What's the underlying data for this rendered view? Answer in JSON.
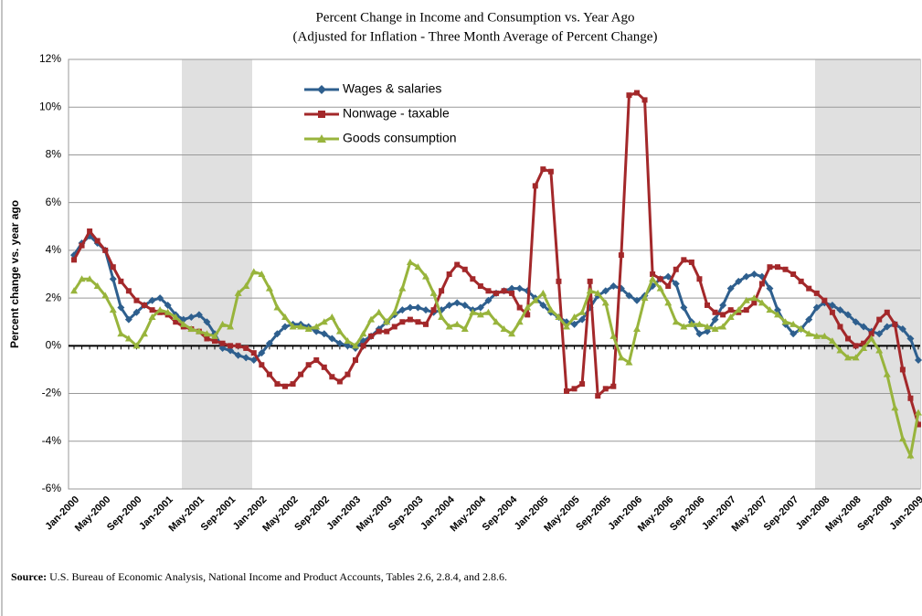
{
  "chart_data": {
    "type": "line",
    "title": "Percent Change in Income and Consumption vs. Year Ago",
    "subtitle": "(Adjusted for Inflation - Three Month Average of Percent Change)",
    "y_label": "Percent change vs. year ago",
    "source_label": "Source:",
    "source_text": "U.S. Bureau of Economic Analysis, National Income and Product Accounts, Tables 2.6, 2.8.4, and 2.8.6.",
    "categories": [
      "Jan-2000",
      null,
      null,
      null,
      "May-2000",
      null,
      null,
      null,
      "Sep-2000",
      null,
      null,
      null,
      "Jan-2001",
      null,
      null,
      null,
      "May-2001",
      null,
      null,
      null,
      "Sep-2001",
      null,
      null,
      null,
      "Jan-2002",
      null,
      null,
      null,
      "May-2002",
      null,
      null,
      null,
      "Sep-2002",
      null,
      null,
      null,
      "Jan-2003",
      null,
      null,
      null,
      "May-2003",
      null,
      null,
      null,
      "Sep-2003",
      null,
      null,
      null,
      "Jan-2004",
      null,
      null,
      null,
      "May-2004",
      null,
      null,
      null,
      "Sep-2004",
      null,
      null,
      null,
      "Jan-2005",
      null,
      null,
      null,
      "May-2005",
      null,
      null,
      null,
      "Sep-2005",
      null,
      null,
      null,
      "Jan-2006",
      null,
      null,
      null,
      "May-2006",
      null,
      null,
      null,
      "Sep-2006",
      null,
      null,
      null,
      "Jan-2007",
      null,
      null,
      null,
      "May-2007",
      null,
      null,
      null,
      "Sep-2007",
      null,
      null,
      null,
      "Jan-2008",
      null,
      null,
      null,
      "May-2008",
      null,
      null,
      null,
      "Sep-2008",
      null,
      null,
      null,
      "Jan-2009"
    ],
    "series": [
      {
        "name": "Wages & salaries",
        "color": "#2e5f8e",
        "marker": "diamond",
        "values": [
          3.8,
          4.3,
          4.6,
          4.3,
          4.0,
          2.8,
          1.6,
          1.1,
          1.4,
          1.7,
          1.9,
          2.0,
          1.7,
          1.3,
          1.1,
          1.2,
          1.3,
          1.0,
          0.5,
          -0.1,
          -0.2,
          -0.4,
          -0.5,
          -0.6,
          -0.3,
          0.1,
          0.5,
          0.8,
          0.9,
          0.9,
          0.8,
          0.6,
          0.5,
          0.3,
          0.1,
          0.0,
          -0.1,
          0.2,
          0.4,
          0.7,
          1.0,
          1.3,
          1.5,
          1.6,
          1.6,
          1.5,
          1.4,
          1.5,
          1.7,
          1.8,
          1.7,
          1.5,
          1.6,
          1.9,
          2.2,
          2.3,
          2.4,
          2.4,
          2.3,
          2.0,
          1.7,
          1.4,
          1.2,
          1.0,
          0.9,
          1.1,
          1.6,
          2.1,
          2.3,
          2.5,
          2.4,
          2.1,
          1.9,
          2.1,
          2.5,
          2.8,
          2.9,
          2.6,
          1.6,
          1.0,
          0.5,
          0.6,
          1.1,
          1.7,
          2.4,
          2.7,
          2.9,
          3.0,
          2.9,
          2.4,
          1.5,
          0.9,
          0.5,
          0.7,
          1.1,
          1.6,
          1.8,
          1.7,
          1.5,
          1.3,
          1.0,
          0.8,
          0.6,
          0.5,
          0.8,
          0.9,
          0.7,
          0.3,
          -0.6
        ]
      },
      {
        "name": "Nonwage - taxable",
        "color": "#a3282a",
        "marker": "square",
        "values": [
          3.6,
          4.2,
          4.8,
          4.4,
          4.0,
          3.3,
          2.7,
          2.3,
          1.9,
          1.7,
          1.5,
          1.4,
          1.3,
          1.0,
          0.8,
          0.7,
          0.6,
          0.3,
          0.2,
          0.1,
          0.0,
          0.0,
          -0.1,
          -0.3,
          -0.8,
          -1.2,
          -1.6,
          -1.7,
          -1.6,
          -1.2,
          -0.8,
          -0.6,
          -0.9,
          -1.3,
          -1.5,
          -1.2,
          -0.6,
          0.0,
          0.4,
          0.6,
          0.6,
          0.8,
          1.0,
          1.1,
          1.0,
          0.9,
          1.5,
          2.3,
          3.0,
          3.4,
          3.2,
          2.8,
          2.5,
          2.3,
          2.2,
          2.3,
          2.2,
          1.6,
          1.3,
          6.7,
          7.4,
          7.3,
          2.7,
          -1.9,
          -1.8,
          -1.6,
          2.7,
          -2.1,
          -1.8,
          -1.7,
          3.8,
          10.5,
          10.6,
          10.3,
          3.0,
          2.8,
          2.5,
          3.2,
          3.6,
          3.5,
          2.8,
          1.7,
          1.4,
          1.3,
          1.5,
          1.4,
          1.5,
          1.8,
          2.6,
          3.3,
          3.3,
          3.2,
          3.0,
          2.7,
          2.4,
          2.2,
          1.9,
          1.4,
          0.8,
          0.3,
          0.0,
          0.1,
          0.5,
          1.1,
          1.4,
          0.9,
          -1.0,
          -2.2,
          -3.3
        ]
      },
      {
        "name": "Goods consumption",
        "color": "#98b43c",
        "marker": "triangle",
        "values": [
          2.3,
          2.8,
          2.8,
          2.5,
          2.1,
          1.5,
          0.5,
          0.3,
          0.0,
          0.5,
          1.2,
          1.5,
          1.4,
          1.2,
          0.9,
          0.7,
          0.6,
          0.5,
          0.4,
          0.9,
          0.8,
          2.2,
          2.5,
          3.1,
          3.0,
          2.4,
          1.6,
          1.2,
          0.8,
          0.8,
          0.7,
          0.8,
          1.0,
          1.2,
          0.6,
          0.2,
          0.0,
          0.5,
          1.1,
          1.4,
          1.0,
          1.4,
          2.4,
          3.5,
          3.3,
          2.9,
          2.2,
          1.2,
          0.8,
          0.9,
          0.7,
          1.4,
          1.3,
          1.4,
          1.0,
          0.7,
          0.5,
          1.0,
          1.6,
          1.9,
          2.2,
          1.5,
          1.2,
          0.8,
          1.2,
          1.4,
          2.3,
          2.2,
          1.8,
          0.4,
          -0.5,
          -0.7,
          0.7,
          2.0,
          2.8,
          2.4,
          1.8,
          1.0,
          0.8,
          0.9,
          0.9,
          0.8,
          0.7,
          0.8,
          1.2,
          1.5,
          1.9,
          2.0,
          1.8,
          1.5,
          1.3,
          1.0,
          0.9,
          0.7,
          0.5,
          0.4,
          0.4,
          0.2,
          -0.2,
          -0.5,
          -0.5,
          -0.1,
          0.3,
          -0.2,
          -1.2,
          -2.6,
          -3.9,
          -4.6,
          -2.8
        ]
      }
    ],
    "ylim": [
      -6,
      12
    ],
    "yticks": [
      {
        "value": -6,
        "label": "-6%"
      },
      {
        "value": -4,
        "label": "-4%"
      },
      {
        "value": -2,
        "label": "-2%"
      },
      {
        "value": 0,
        "label": "0%"
      },
      {
        "value": 2,
        "label": "2%"
      },
      {
        "value": 4,
        "label": "4%"
      },
      {
        "value": 6,
        "label": "6%"
      },
      {
        "value": 8,
        "label": "8%"
      },
      {
        "value": 10,
        "label": "10%"
      },
      {
        "value": 12,
        "label": "12%"
      }
    ],
    "grid": true,
    "legend": "top"
  }
}
